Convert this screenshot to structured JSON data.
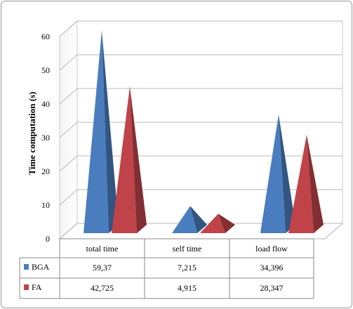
{
  "chart_data": {
    "type": "bar",
    "title": "",
    "ylabel": "Time computation (s)",
    "ylim": [
      0,
      60
    ],
    "yticks": [
      "0",
      "10",
      "20",
      "30",
      "40",
      "50",
      "60"
    ],
    "categories": [
      "total time",
      "self time",
      "load flow"
    ],
    "series": [
      {
        "name": "BGA",
        "values": [
          59.37,
          7.215,
          34.396
        ],
        "labels": [
          "59,37",
          "7,215",
          "34,396"
        ],
        "color": "#4a7dbe"
      },
      {
        "name": "FA",
        "values": [
          42.725,
          4.915,
          28.347
        ],
        "labels": [
          "42,725",
          "4,915",
          "28,347"
        ],
        "color": "#c0434a"
      }
    ],
    "grid": true,
    "legend": "data-table"
  }
}
